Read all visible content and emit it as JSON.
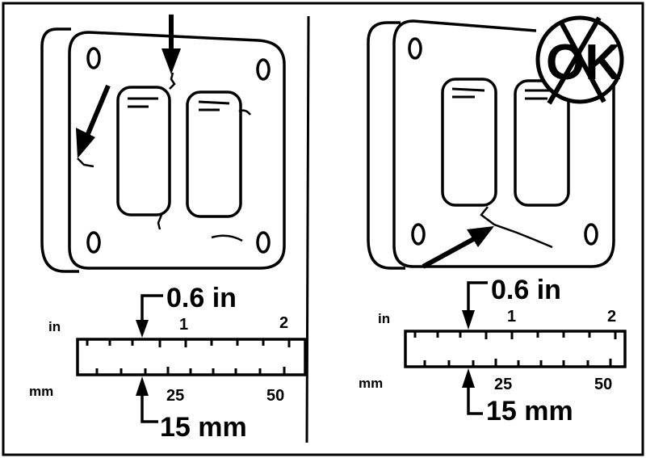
{
  "left_panel": {
    "top_measure": "0.6 in",
    "bottom_measure": "15 mm",
    "ruler": {
      "unit_top": "in",
      "unit_bottom": "mm",
      "in_ticks": [
        "1",
        "2"
      ],
      "mm_ticks": [
        "25",
        "50"
      ]
    }
  },
  "right_panel": {
    "stamp_text": "OK",
    "top_measure": "0.6 in",
    "bottom_measure": "15 mm",
    "ruler": {
      "unit_top": "in",
      "unit_bottom": "mm",
      "in_ticks": [
        "1",
        "2"
      ],
      "mm_ticks": [
        "25",
        "50"
      ]
    }
  }
}
